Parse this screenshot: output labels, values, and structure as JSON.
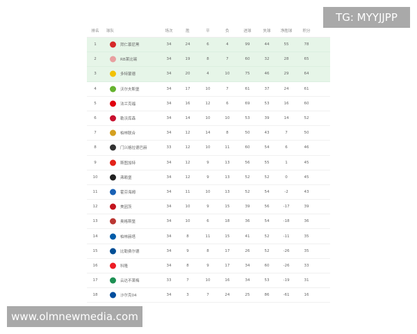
{
  "headers": [
    "排名",
    "球队",
    "场次",
    "胜",
    "平",
    "负",
    "进球",
    "失球",
    "净胜球",
    "积分"
  ],
  "highlight_color": "#e6f5e8",
  "rows": [
    {
      "rank": "1",
      "team": "拜仁慕尼黑",
      "p": "34",
      "w": "24",
      "d": "6",
      "l": "4",
      "gf": "99",
      "ga": "44",
      "gd": "55",
      "pts": "78",
      "logo_color": "#d62828"
    },
    {
      "rank": "2",
      "team": "RB莱比锡",
      "p": "34",
      "w": "19",
      "d": "8",
      "l": "7",
      "gf": "60",
      "ga": "32",
      "gd": "28",
      "pts": "65",
      "logo_color": "#e8a0a0"
    },
    {
      "rank": "3",
      "team": "多特蒙德",
      "p": "34",
      "w": "20",
      "d": "4",
      "l": "10",
      "gf": "75",
      "ga": "46",
      "gd": "29",
      "pts": "64",
      "logo_color": "#f2c200"
    },
    {
      "rank": "4",
      "team": "沃尔夫斯堡",
      "p": "34",
      "w": "17",
      "d": "10",
      "l": "7",
      "gf": "61",
      "ga": "37",
      "gd": "24",
      "pts": "61",
      "logo_color": "#65b32e"
    },
    {
      "rank": "5",
      "team": "法兰克福",
      "p": "34",
      "w": "16",
      "d": "12",
      "l": "6",
      "gf": "69",
      "ga": "53",
      "gd": "16",
      "pts": "60",
      "logo_color": "#e1000f"
    },
    {
      "rank": "6",
      "team": "勒沃库森",
      "p": "34",
      "w": "14",
      "d": "10",
      "l": "10",
      "gf": "53",
      "ga": "39",
      "gd": "14",
      "pts": "52",
      "logo_color": "#c8102e"
    },
    {
      "rank": "7",
      "team": "柏林联合",
      "p": "34",
      "w": "12",
      "d": "14",
      "l": "8",
      "gf": "50",
      "ga": "43",
      "gd": "7",
      "pts": "50",
      "logo_color": "#d4a020"
    },
    {
      "rank": "8",
      "team": "门兴格拉德巴赫",
      "p": "33",
      "w": "12",
      "d": "10",
      "l": "11",
      "gf": "60",
      "ga": "54",
      "gd": "6",
      "pts": "46",
      "logo_color": "#333333"
    },
    {
      "rank": "9",
      "team": "斯图加特",
      "p": "34",
      "w": "12",
      "d": "9",
      "l": "13",
      "gf": "56",
      "ga": "55",
      "gd": "1",
      "pts": "45",
      "logo_color": "#e32219"
    },
    {
      "rank": "10",
      "team": "弗赖堡",
      "p": "34",
      "w": "12",
      "d": "9",
      "l": "13",
      "gf": "52",
      "ga": "52",
      "gd": "0",
      "pts": "45",
      "logo_color": "#222222"
    },
    {
      "rank": "11",
      "team": "霍芬海姆",
      "p": "34",
      "w": "11",
      "d": "10",
      "l": "13",
      "gf": "52",
      "ga": "54",
      "gd": "-2",
      "pts": "43",
      "logo_color": "#1961b5"
    },
    {
      "rank": "12",
      "team": "美因茨",
      "p": "34",
      "w": "10",
      "d": "9",
      "l": "15",
      "gf": "39",
      "ga": "56",
      "gd": "-17",
      "pts": "39",
      "logo_color": "#c3141e"
    },
    {
      "rank": "13",
      "team": "奥格斯堡",
      "p": "34",
      "w": "10",
      "d": "6",
      "l": "18",
      "gf": "36",
      "ga": "54",
      "gd": "-18",
      "pts": "36",
      "logo_color": "#ba3733"
    },
    {
      "rank": "14",
      "team": "柏林赫塔",
      "p": "34",
      "w": "8",
      "d": "11",
      "l": "15",
      "gf": "41",
      "ga": "52",
      "gd": "-11",
      "pts": "35",
      "logo_color": "#005ca9"
    },
    {
      "rank": "15",
      "team": "比勒费尔德",
      "p": "34",
      "w": "9",
      "d": "8",
      "l": "17",
      "gf": "26",
      "ga": "52",
      "gd": "-26",
      "pts": "35",
      "logo_color": "#004e95"
    },
    {
      "rank": "16",
      "team": "科隆",
      "p": "34",
      "w": "8",
      "d": "9",
      "l": "17",
      "gf": "34",
      "ga": "60",
      "gd": "-26",
      "pts": "33",
      "logo_color": "#ed1c24"
    },
    {
      "rank": "17",
      "team": "云达不莱梅",
      "p": "33",
      "w": "7",
      "d": "10",
      "l": "16",
      "gf": "34",
      "ga": "53",
      "gd": "-19",
      "pts": "31",
      "logo_color": "#1d9053"
    },
    {
      "rank": "18",
      "team": "沙尔克04",
      "p": "34",
      "w": "3",
      "d": "7",
      "l": "24",
      "gf": "25",
      "ga": "86",
      "gd": "-61",
      "pts": "16",
      "logo_color": "#004d9d"
    }
  ],
  "watermark_top": "TG: MYYJJPP",
  "watermark_bottom": "www.olmnewmedia.com"
}
